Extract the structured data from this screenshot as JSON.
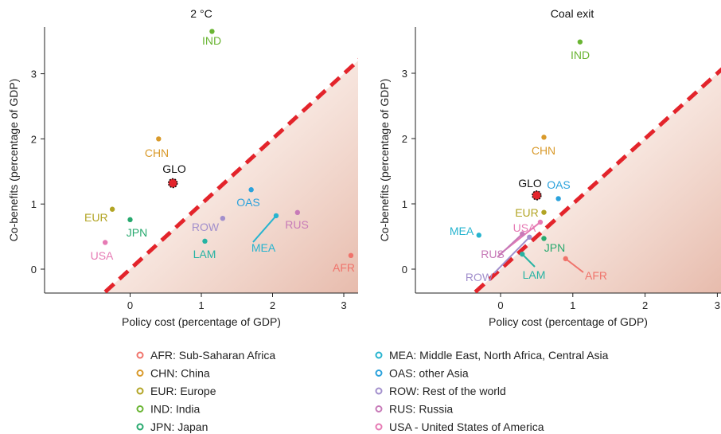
{
  "chart_data": [
    {
      "type": "scatter",
      "title": "2 °C",
      "xlabel": "Policy cost (percentage of GDP)",
      "ylabel": "Co-benefits (percentage of GDP)",
      "xlim": [
        -1.2,
        3.2
      ],
      "ylim": [
        -0.4,
        3.7
      ],
      "xticks": [
        "0",
        "1",
        "2",
        "3"
      ],
      "yticks": [
        "0",
        "1",
        "2",
        "3"
      ],
      "reference_line": {
        "type": "y=x",
        "style": "dashed",
        "color": "#e3242b"
      },
      "points": [
        {
          "label": "IND",
          "x": 1.15,
          "y": 3.65
        },
        {
          "label": "CHN",
          "x": 0.4,
          "y": 2.0
        },
        {
          "label": "GLO",
          "x": 0.6,
          "y": 1.32
        },
        {
          "label": "OAS",
          "x": 1.7,
          "y": 1.22
        },
        {
          "label": "EUR",
          "x": -0.25,
          "y": 0.92
        },
        {
          "label": "JPN",
          "x": 0.0,
          "y": 0.76
        },
        {
          "label": "ROW",
          "x": 1.3,
          "y": 0.78
        },
        {
          "label": "RUS",
          "x": 2.35,
          "y": 0.87
        },
        {
          "label": "MEA",
          "x": 2.05,
          "y": 0.82
        },
        {
          "label": "LAM",
          "x": 1.05,
          "y": 0.43
        },
        {
          "label": "USA",
          "x": -0.35,
          "y": 0.41
        },
        {
          "label": "AFR",
          "x": 3.1,
          "y": 0.21
        }
      ]
    },
    {
      "type": "scatter",
      "title": "Coal exit",
      "xlabel": "Policy cost (percentage of GDP)",
      "ylabel": "Co-benefits (percentage of GDP)",
      "xlim": [
        -1.2,
        3.0
      ],
      "ylim": [
        -0.4,
        3.7
      ],
      "xticks": [
        "0",
        "1",
        "2",
        "3"
      ],
      "yticks": [
        "0",
        "1",
        "2",
        "3"
      ],
      "reference_line": {
        "type": "y=x",
        "style": "dashed",
        "color": "#e3242b"
      },
      "points": [
        {
          "label": "IND",
          "x": 1.1,
          "y": 3.48
        },
        {
          "label": "CHN",
          "x": 0.6,
          "y": 2.02
        },
        {
          "label": "GLO",
          "x": 0.5,
          "y": 1.13
        },
        {
          "label": "OAS",
          "x": 0.8,
          "y": 1.08
        },
        {
          "label": "EUR",
          "x": 0.6,
          "y": 0.87
        },
        {
          "label": "USA",
          "x": 0.55,
          "y": 0.72
        },
        {
          "label": "MEA",
          "x": -0.3,
          "y": 0.52
        },
        {
          "label": "RUS",
          "x": 0.3,
          "y": 0.54
        },
        {
          "label": "JPN",
          "x": 0.6,
          "y": 0.47
        },
        {
          "label": "ROW",
          "x": 0.4,
          "y": 0.49
        },
        {
          "label": "LAM",
          "x": 0.3,
          "y": 0.23
        },
        {
          "label": "AFR",
          "x": 0.9,
          "y": 0.16
        }
      ]
    }
  ],
  "colors": {
    "AFR": "#f0736b",
    "CHN": "#d99a2b",
    "EUR": "#b2a424",
    "IND": "#6ab533",
    "JPN": "#27a96e",
    "LAM": "#26b3a3",
    "MEA": "#27b4cf",
    "OAS": "#2ba2dc",
    "ROW": "#a28fcc",
    "RUS": "#c77ab8",
    "USA": "#e67ab4",
    "GLO": "#e3242b"
  },
  "legend": {
    "left": [
      {
        "key": "AFR",
        "text": "AFR: Sub-Saharan Africa"
      },
      {
        "key": "CHN",
        "text": "CHN: China"
      },
      {
        "key": "EUR",
        "text": "EUR: Europe"
      },
      {
        "key": "IND",
        "text": "IND: India"
      },
      {
        "key": "JPN",
        "text": "JPN: Japan"
      }
    ],
    "right": [
      {
        "key": "MEA",
        "text": "MEA: Middle East, North Africa, Central Asia"
      },
      {
        "key": "OAS",
        "text": "OAS: other Asia"
      },
      {
        "key": "ROW",
        "text": "ROW: Rest of the world"
      },
      {
        "key": "RUS",
        "text": "RUS: Russia"
      },
      {
        "key": "USA",
        "text": "USA - United States of America"
      }
    ]
  }
}
